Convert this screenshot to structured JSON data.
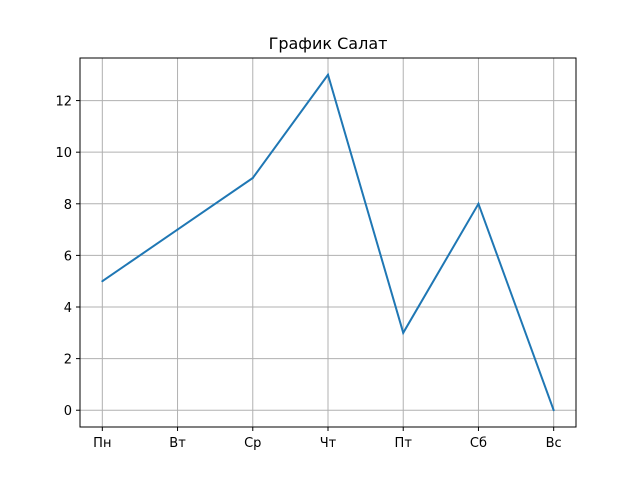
{
  "chart_data": {
    "type": "line",
    "title": "График Салат",
    "xlabel": "",
    "ylabel": "",
    "categories": [
      "Пн",
      "Вт",
      "Ср",
      "Чт",
      "Пт",
      "Сб",
      "Вс"
    ],
    "series": [
      {
        "values": [
          5,
          7,
          9,
          13,
          3,
          8,
          0
        ],
        "color": "#1f77b4"
      }
    ],
    "ylim": [
      -0.65,
      13.65
    ],
    "yticks": [
      0,
      2,
      4,
      6,
      8,
      10,
      12
    ],
    "ytick_labels": [
      "0",
      "2",
      "4",
      "6",
      "8",
      "10",
      "12"
    ],
    "grid": true,
    "grid_color": "#b0b0b0",
    "legend": false
  }
}
